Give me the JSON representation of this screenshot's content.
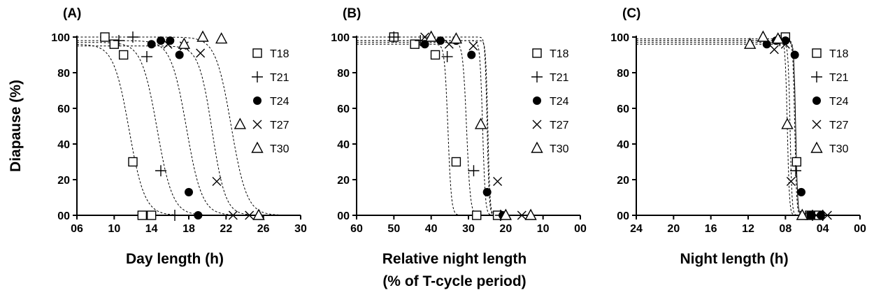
{
  "y_axis_label": "Diapause (%)",
  "chart_data": [
    {
      "type": "scatter",
      "panel": "(A)",
      "xlabel": [
        "Day length (h)"
      ],
      "ylabel": "Diapause (%)",
      "xlim": [
        6,
        30
      ],
      "ylim": [
        0,
        100
      ],
      "xticks": [
        "06",
        "10",
        "14",
        "18",
        "22",
        "26",
        "30"
      ],
      "yticks": [
        "00",
        "20",
        "40",
        "60",
        "80",
        "100"
      ],
      "grid": false,
      "legend": "right",
      "series": [
        {
          "name": "T18",
          "marker": "square",
          "x": [
            9,
            10,
            11,
            12,
            13,
            14
          ],
          "y": [
            100,
            96,
            90,
            30,
            0,
            0
          ]
        },
        {
          "name": "T21",
          "marker": "plus",
          "x": [
            10.5,
            12,
            13.5,
            15,
            16.5
          ],
          "y": [
            98,
            100,
            89,
            25,
            0
          ]
        },
        {
          "name": "T24",
          "marker": "dot",
          "x": [
            14,
            15,
            16,
            17,
            18,
            19
          ],
          "y": [
            96,
            98,
            98,
            90,
            13,
            0
          ]
        },
        {
          "name": "T27",
          "marker": "x",
          "x": [
            15.75,
            17.5,
            19.25,
            21,
            22.75,
            24.5
          ],
          "y": [
            96,
            95,
            91,
            19,
            0,
            0
          ]
        },
        {
          "name": "T30",
          "marker": "triangle",
          "x": [
            17.5,
            19.5,
            21.5,
            23.5,
            25.5
          ],
          "y": [
            96,
            100,
            99,
            51,
            0
          ]
        }
      ],
      "fits": [
        {
          "name": "T18",
          "top": 96,
          "mid": 11.6,
          "k": 0.3
        },
        {
          "name": "T21",
          "top": 97,
          "mid": 14.6,
          "k": 0.3
        },
        {
          "name": "T24",
          "top": 98,
          "mid": 17.75,
          "k": 0.3
        },
        {
          "name": "T27",
          "top": 95,
          "mid": 20.5,
          "k": 0.35
        },
        {
          "name": "T30",
          "top": 100,
          "mid": 22.55,
          "k": 0.3
        }
      ]
    },
    {
      "type": "scatter",
      "panel": "(B)",
      "xlabel": [
        "Relative night length",
        "(% of T-cycle period)"
      ],
      "ylabel": "Diapause (%)",
      "xlim": [
        60,
        0
      ],
      "ylim": [
        0,
        100
      ],
      "xticks": [
        "60",
        "50",
        "40",
        "30",
        "20",
        "10",
        "00"
      ],
      "yticks": [
        "00",
        "20",
        "40",
        "60",
        "80",
        "100"
      ],
      "grid": false,
      "legend": "right",
      "series": [
        {
          "name": "T18",
          "marker": "square",
          "x": [
            50,
            44.4,
            38.9,
            33.3,
            27.8,
            22.2
          ],
          "y": [
            100,
            96,
            90,
            30,
            0,
            0
          ]
        },
        {
          "name": "T21",
          "marker": "plus",
          "x": [
            50,
            42.9,
            35.7,
            28.6,
            21.4
          ],
          "y": [
            100,
            98,
            89,
            25,
            0
          ]
        },
        {
          "name": "T24",
          "marker": "dot",
          "x": [
            41.7,
            37.5,
            33.3,
            29.2,
            25,
            20.8
          ],
          "y": [
            96,
            98,
            98,
            90,
            13,
            0
          ]
        },
        {
          "name": "T27",
          "marker": "x",
          "x": [
            41.7,
            35.2,
            28.7,
            22.2,
            15.7
          ],
          "y": [
            100,
            96,
            95,
            19,
            0
          ]
        },
        {
          "name": "T30",
          "marker": "triangle",
          "x": [
            40,
            33.3,
            26.7,
            20,
            13.3
          ],
          "y": [
            100,
            99,
            51,
            0,
            0
          ]
        }
      ],
      "fits": [
        {
          "name": "T18",
          "top": 96,
          "mid": 35.5,
          "k": 0.55
        },
        {
          "name": "T21",
          "top": 97,
          "mid": 30.5,
          "k": 0.5
        },
        {
          "name": "T24",
          "top": 98,
          "mid": 26.2,
          "k": 0.7
        },
        {
          "name": "T27",
          "top": 98,
          "mid": 24.8,
          "k": 0.9
        },
        {
          "name": "T30",
          "top": 100,
          "mid": 25,
          "k": 0.9
        }
      ]
    },
    {
      "type": "scatter",
      "panel": "(C)",
      "xlabel": [
        "Night length (h)"
      ],
      "ylabel": "Diapause (%)",
      "xlim": [
        24,
        0
      ],
      "ylim": [
        0,
        100
      ],
      "xticks": [
        "24",
        "20",
        "16",
        "12",
        "08",
        "04",
        "00"
      ],
      "yticks": [
        "00",
        "20",
        "40",
        "60",
        "80",
        "100"
      ],
      "grid": false,
      "legend": "right",
      "series": [
        {
          "name": "T18",
          "marker": "square",
          "x": [
            8,
            6.8,
            5.4,
            4.4
          ],
          "y": [
            100,
            30,
            0,
            0
          ]
        },
        {
          "name": "T21",
          "marker": "plus",
          "x": [
            8.6,
            6.9,
            5.1,
            4
          ],
          "y": [
            98,
            25,
            0,
            0
          ]
        },
        {
          "name": "T24",
          "marker": "dot",
          "x": [
            10,
            9,
            8,
            7,
            6.3,
            5.3,
            4.2
          ],
          "y": [
            96,
            98,
            98,
            90,
            13,
            0,
            0
          ]
        },
        {
          "name": "T27",
          "marker": "x",
          "x": [
            9.2,
            8,
            7.4,
            6,
            4.7,
            3.5
          ],
          "y": [
            93,
            96,
            19,
            0,
            0,
            0
          ]
        },
        {
          "name": "T30",
          "marker": "triangle",
          "x": [
            11.8,
            10.4,
            8.8,
            7.8,
            6.2
          ],
          "y": [
            96,
            100,
            99,
            51,
            0
          ]
        }
      ],
      "fits": [
        {
          "name": "T18",
          "top": 97,
          "mid": 6.9,
          "k": 2.5
        },
        {
          "name": "T21",
          "top": 98,
          "mid": 7.0,
          "k": 2.5
        },
        {
          "name": "T24",
          "top": 98,
          "mid": 6.9,
          "k": 2.5
        },
        {
          "name": "T27",
          "top": 96,
          "mid": 7.5,
          "k": 2.5
        },
        {
          "name": "T30",
          "top": 99,
          "mid": 7.8,
          "k": 2.2
        }
      ]
    }
  ]
}
